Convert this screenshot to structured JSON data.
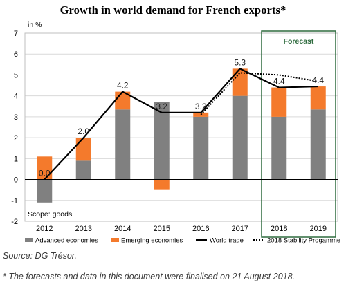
{
  "title": "Growth in world demand for French exports*",
  "source": "Source: DG Trésor.",
  "footnote": "* The forecasts and data in this document were finalised on 21 August 2018.",
  "colors": {
    "advanced": "#808080",
    "emerging": "#f47a2c",
    "world_trade": "#000000",
    "stability": "#000000",
    "forecast_border": "#2e6b3e",
    "forecast_text": "#2e6b3e"
  },
  "chart_data": {
    "type": "bar",
    "stacked": true,
    "ylabel": "in %",
    "ylim": [
      -2,
      7
    ],
    "yticks": [
      "-2",
      "-1",
      "0",
      "1",
      "2",
      "3",
      "4",
      "5",
      "6",
      "7"
    ],
    "categories": [
      "2012",
      "2013",
      "2014",
      "2015",
      "2016",
      "2017",
      "2018",
      "2019"
    ],
    "annotation": "Scope: goods",
    "forecast_label": "Forecast",
    "forecast_categories": [
      "2018",
      "2019"
    ],
    "series": [
      {
        "name": "Advanced economies",
        "kind": "bar",
        "values": [
          -1.1,
          0.9,
          3.35,
          3.7,
          3.0,
          4.0,
          3.0,
          3.35
        ]
      },
      {
        "name": "Emerging economies",
        "kind": "bar",
        "values": [
          1.1,
          1.1,
          0.85,
          -0.5,
          0.2,
          1.3,
          1.4,
          1.1
        ]
      },
      {
        "name": "World trade",
        "kind": "line",
        "values": [
          0.0,
          2.0,
          4.2,
          3.2,
          3.2,
          5.3,
          4.4,
          4.45
        ]
      },
      {
        "name": "2018 Stability Progamme",
        "kind": "dotted-line",
        "values": [
          null,
          null,
          null,
          null,
          3.1,
          5.1,
          5.0,
          4.7
        ]
      }
    ],
    "data_labels": [
      "0.0",
      "2.0",
      "4.2",
      "3.2",
      "3.2",
      "5.3",
      "4.4",
      "4.4"
    ],
    "grid": true,
    "legend_position": "bottom"
  }
}
